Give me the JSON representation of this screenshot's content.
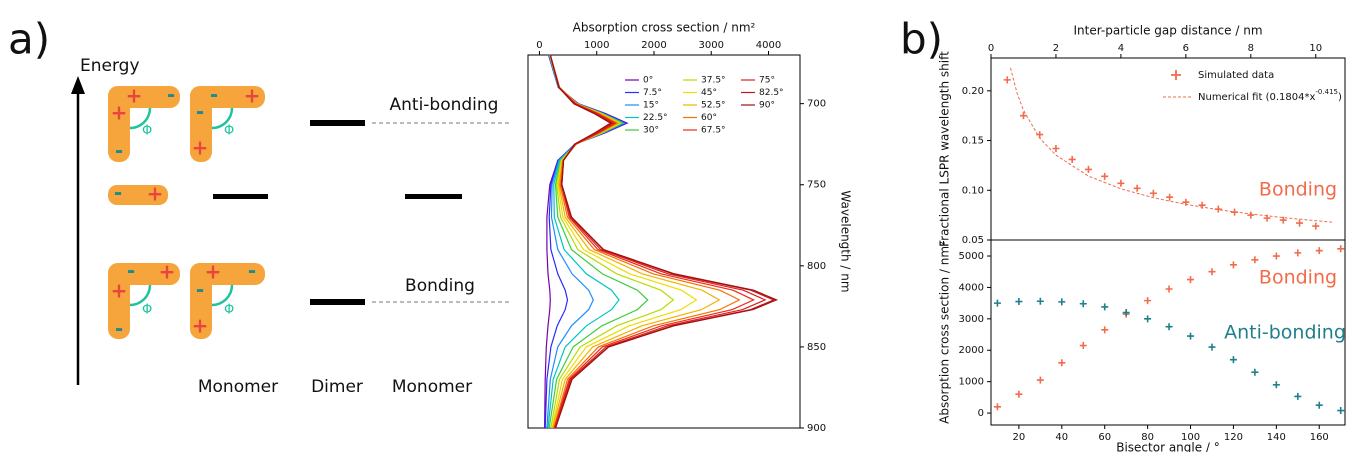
{
  "panel_labels": [
    "a)",
    "b)"
  ],
  "diagram": {
    "energy_label": "Energy",
    "levels": [
      "Anti-bonding",
      "Bonding"
    ],
    "columns": [
      "Monomer",
      "Dimer",
      "Monomer"
    ],
    "phi": "Φ",
    "plus": "+",
    "minus": "-"
  },
  "chart_data": [
    {
      "type": "line",
      "orientation": "horizontal",
      "x_label": "Absorption cross section / nm²",
      "y_label": "Wavelength / nm",
      "xlim": [
        -200,
        4550
      ],
      "xticks": [
        0,
        1000,
        2000,
        3000,
        4000
      ],
      "ylim": [
        670,
        900
      ],
      "yticks": [
        700,
        750,
        800,
        850,
        900
      ],
      "y_inverted": true,
      "x_axis": "top",
      "y_axis": "right",
      "legend": "upper right",
      "y": [
        670,
        690,
        700,
        706,
        712,
        718,
        725,
        735,
        750,
        770,
        790,
        805,
        815,
        821,
        827,
        837,
        850,
        870,
        900
      ],
      "series": [
        {
          "name": "0°",
          "color": "#7a00a8",
          "values": [
            160,
            330,
            680,
            1150,
            1530,
            1150,
            620,
            320,
            180,
            130,
            130,
            150,
            180,
            190,
            180,
            150,
            120,
            100,
            90
          ]
        },
        {
          "name": "7.5°",
          "color": "#2a2aff",
          "values": [
            160,
            330,
            670,
            1130,
            1510,
            1140,
            620,
            320,
            200,
            170,
            200,
            320,
            450,
            490,
            450,
            310,
            200,
            130,
            100
          ]
        },
        {
          "name": "15°",
          "color": "#1e8cff",
          "values": [
            170,
            330,
            660,
            1110,
            1480,
            1120,
            620,
            340,
            220,
            210,
            320,
            570,
            860,
            940,
            860,
            560,
            320,
            190,
            130
          ]
        },
        {
          "name": "22.5°",
          "color": "#00c4c4",
          "values": [
            170,
            340,
            660,
            1100,
            1460,
            1110,
            630,
            350,
            250,
            260,
            430,
            820,
            1260,
            1390,
            1260,
            820,
            450,
            240,
            150
          ]
        },
        {
          "name": "30°",
          "color": "#3ccc3c",
          "values": [
            180,
            340,
            660,
            1090,
            1450,
            1100,
            630,
            370,
            280,
            320,
            560,
            1100,
            1710,
            1890,
            1710,
            1090,
            590,
            300,
            170
          ]
        },
        {
          "name": "37.5°",
          "color": "#b4dc00",
          "values": [
            180,
            340,
            650,
            1080,
            1420,
            1090,
            630,
            380,
            300,
            370,
            670,
            1350,
            2120,
            2340,
            2120,
            1350,
            710,
            350,
            200
          ]
        },
        {
          "name": "45°",
          "color": "#f0dc00",
          "values": [
            180,
            340,
            650,
            1060,
            1400,
            1080,
            640,
            390,
            320,
            410,
            770,
            1580,
            2480,
            2740,
            2470,
            1570,
            820,
            400,
            220
          ]
        },
        {
          "name": "52.5°",
          "color": "#f5b000",
          "values": [
            190,
            350,
            650,
            1050,
            1380,
            1070,
            640,
            400,
            340,
            450,
            870,
            1800,
            2840,
            3140,
            2830,
            1790,
            930,
            450,
            230
          ]
        },
        {
          "name": "60°",
          "color": "#f57000",
          "values": [
            190,
            350,
            640,
            1030,
            1350,
            1050,
            640,
            410,
            360,
            490,
            960,
            1990,
            3150,
            3490,
            3150,
            1990,
            1030,
            490,
            250
          ]
        },
        {
          "name": "67.5°",
          "color": "#ee2a1a",
          "values": [
            190,
            350,
            630,
            1010,
            1330,
            1030,
            630,
            420,
            380,
            520,
            1020,
            2130,
            3380,
            3740,
            3370,
            2130,
            1100,
            520,
            260
          ]
        },
        {
          "name": "75°",
          "color": "#d82020",
          "values": [
            190,
            340,
            620,
            1000,
            1300,
            1020,
            630,
            420,
            390,
            540,
            1070,
            2250,
            3560,
            3940,
            3550,
            2240,
            1160,
            540,
            270
          ]
        },
        {
          "name": "82.5°",
          "color": "#c01818",
          "values": [
            190,
            340,
            610,
            970,
            1270,
            990,
            620,
            420,
            390,
            560,
            1110,
            2330,
            3690,
            4090,
            3690,
            2320,
            1200,
            560,
            280
          ]
        },
        {
          "name": "90°",
          "color": "#a01010",
          "values": [
            190,
            340,
            600,
            950,
            1240,
            970,
            610,
            420,
            390,
            560,
            1120,
            2360,
            3740,
            4140,
            3730,
            2350,
            1210,
            570,
            280
          ]
        }
      ]
    },
    {
      "type": "scatter",
      "x_label": "Inter-particle gap distance / nm",
      "y_label": "Fractional LSPR wavelength shift",
      "xlim": [
        0,
        10.9
      ],
      "xticks": [
        0,
        2,
        4,
        6,
        8,
        10
      ],
      "ylim": [
        0.05,
        0.233
      ],
      "yticks": [
        0.05,
        {
          "value": 0.1,
          "label": "0.10"
        },
        0.15,
        {
          "value": 0.2,
          "label": "0.20"
        }
      ],
      "x_axis": "top",
      "y_axis": "left",
      "legend": "upper right",
      "annotations": [
        "Bonding"
      ],
      "annotation_color": "#f26b4a",
      "series": [
        {
          "name": "Simulated data",
          "color": "#f26b4a",
          "marker": "+",
          "x": [
            0.5,
            1,
            1.5,
            2,
            2.5,
            3,
            3.5,
            4,
            4.5,
            5,
            5.5,
            6,
            6.5,
            7,
            7.5,
            8,
            8.5,
            9,
            9.5,
            10
          ],
          "values": [
            0.211,
            0.175,
            0.156,
            0.142,
            0.131,
            0.121,
            0.114,
            0.107,
            0.102,
            0.097,
            0.093,
            0.088,
            0.085,
            0.081,
            0.078,
            0.075,
            0.072,
            0.07,
            0.067,
            0.064
          ]
        },
        {
          "name": "Numerical fit (0.1804*x",
          "name_sup": "-0.415",
          "name_end": ")",
          "color": "#f26b4a",
          "line": "dashed",
          "x": [
            0.6,
            0.8,
            1,
            1.5,
            2,
            3,
            4,
            5,
            6,
            7,
            8,
            9,
            10,
            10.5
          ],
          "values": [
            0.223,
            0.1979,
            0.1804,
            0.1525,
            0.1353,
            0.1143,
            0.1015,
            0.0925,
            0.0858,
            0.0805,
            0.0761,
            0.0725,
            0.0694,
            0.068
          ]
        }
      ]
    },
    {
      "type": "scatter",
      "x_label": "Bisector angle / °",
      "y_label": "Absorption cross section / nm²",
      "xlim": [
        7,
        172
      ],
      "xticks": [
        20,
        40,
        60,
        80,
        100,
        120,
        140,
        160
      ],
      "ylim": [
        -380,
        5510
      ],
      "yticks": [
        0,
        1000,
        2000,
        3000,
        4000,
        5000
      ],
      "x_axis": "bottom",
      "y_axis": "left",
      "series_labels": "inline",
      "x": [
        10,
        20,
        30,
        40,
        50,
        60,
        70,
        80,
        90,
        100,
        110,
        120,
        130,
        140,
        150,
        160,
        170
      ],
      "series": [
        {
          "name": "Bonding",
          "color": "#f26b4a",
          "marker": "+",
          "values": [
            200,
            600,
            1050,
            1600,
            2150,
            2650,
            3150,
            3580,
            3950,
            4250,
            4500,
            4720,
            4880,
            5000,
            5100,
            5170,
            5230
          ]
        },
        {
          "name": "Anti-bonding",
          "color": "#1f7f8c",
          "marker": "+",
          "values": [
            3500,
            3550,
            3560,
            3540,
            3480,
            3380,
            3200,
            3000,
            2750,
            2450,
            2100,
            1700,
            1300,
            900,
            530,
            250,
            80
          ]
        }
      ]
    }
  ]
}
